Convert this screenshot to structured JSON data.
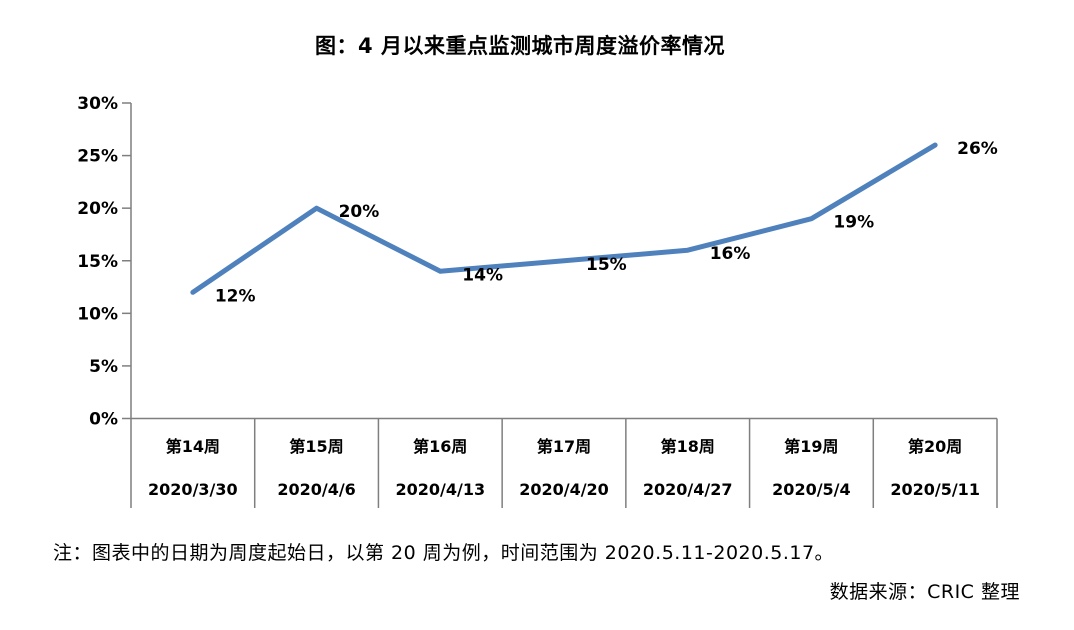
{
  "title": "图：4 月以来重点监测城市周度溢价率情况",
  "note": "注：图表中的日期为周度起始日，以第 20 周为例，时间范围为 2020.5.11-2020.5.17。",
  "source": "数据来源：CRIC 整理",
  "colors": {
    "line": "#4F81BD",
    "axis": "#7F7F7F",
    "text": "#000000"
  },
  "chart_data": {
    "type": "line",
    "title": "图：4 月以来重点监测城市周度溢价率情况",
    "categories": [
      "第14周",
      "第15周",
      "第16周",
      "第17周",
      "第18周",
      "第19周",
      "第20周"
    ],
    "category_dates": [
      "2020/3/30",
      "2020/4/6",
      "2020/4/13",
      "2020/4/20",
      "2020/4/27",
      "2020/5/4",
      "2020/5/11"
    ],
    "series": [
      {
        "name": "周度溢价率",
        "values": [
          12,
          20,
          14,
          15,
          16,
          19,
          26
        ]
      }
    ],
    "data_labels": [
      "12%",
      "20%",
      "14%",
      "15%",
      "16%",
      "19%",
      "26%"
    ],
    "xlabel": "",
    "ylabel": "",
    "ylim": [
      0,
      30
    ],
    "ytick_step": 5,
    "ytick_labels": [
      "0%",
      "5%",
      "10%",
      "15%",
      "20%",
      "25%",
      "30%"
    ],
    "grid": false,
    "legend": false,
    "line_color": "#4F81BD"
  }
}
